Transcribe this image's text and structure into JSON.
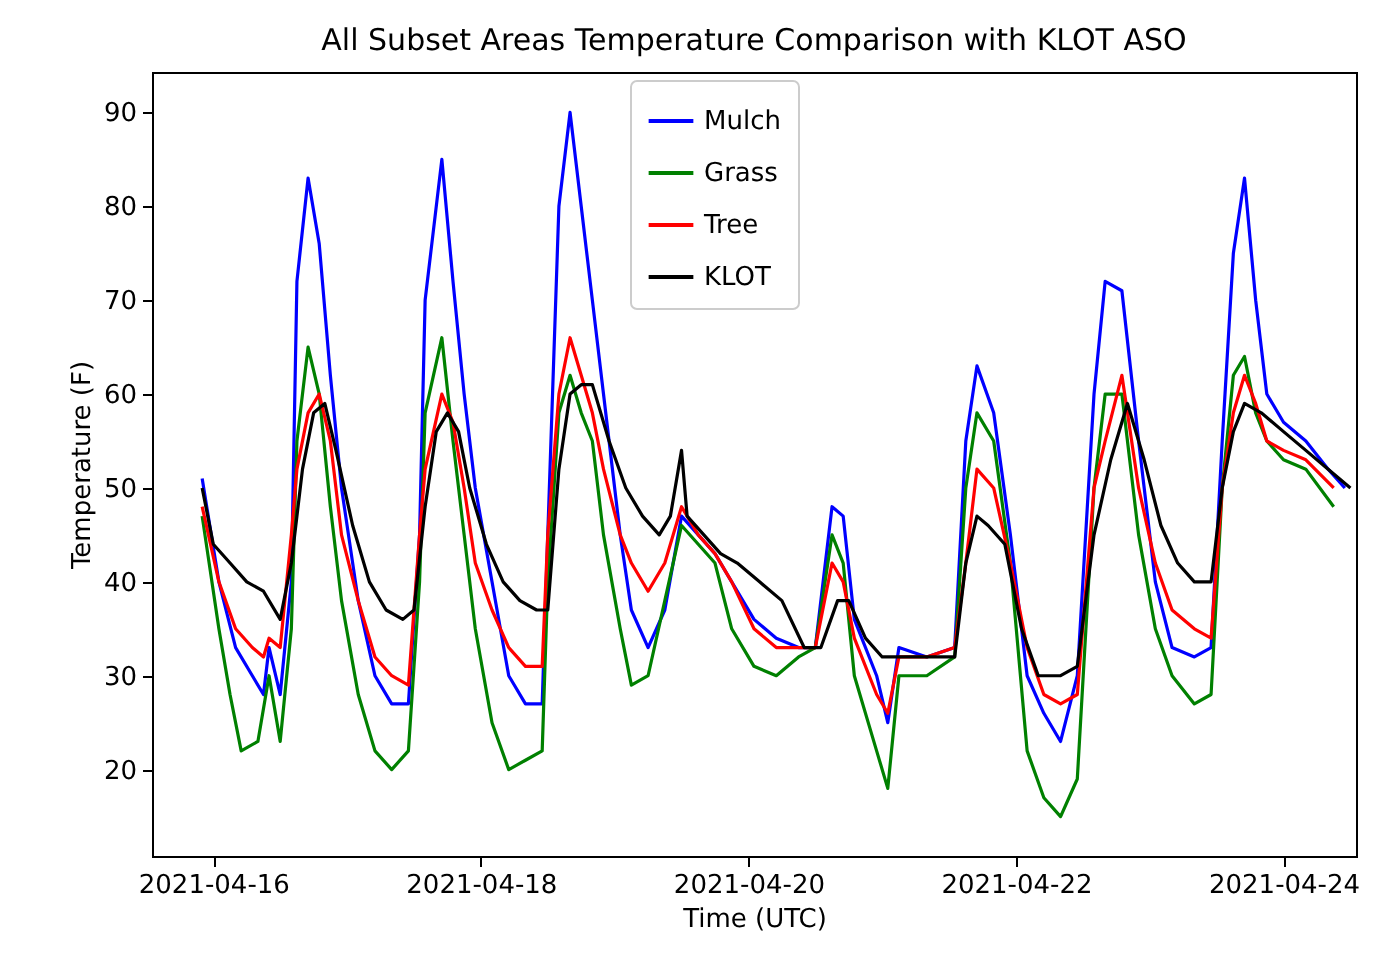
{
  "chart_data": {
    "type": "line",
    "title": "All Subset Areas Temperature Comparison with KLOT ASO",
    "xlabel": "Time (UTC)",
    "ylabel": "Temperature (F)",
    "xlim": [
      "2021-04-15T13:00",
      "2021-04-24T13:00"
    ],
    "xticks": [
      "2021-04-16",
      "2021-04-18",
      "2021-04-20",
      "2021-04-22",
      "2021-04-24"
    ],
    "ylim": [
      10.8,
      94.3
    ],
    "yticks": [
      20,
      30,
      40,
      50,
      60,
      70,
      80,
      90
    ],
    "grid": false,
    "legend": "top",
    "line_style": "solid",
    "series": [
      {
        "name": "Mulch",
        "color": "#0000ff",
        "x": [
          "2021-04-15T22:00",
          "2021-04-16T01:00",
          "2021-04-16T04:00",
          "2021-04-16T07:00",
          "2021-04-16T09:00",
          "2021-04-16T10:00",
          "2021-04-16T12:00",
          "2021-04-16T14:00",
          "2021-04-16T15:00",
          "2021-04-16T17:00",
          "2021-04-16T19:00",
          "2021-04-16T21:00",
          "2021-04-16T23:00",
          "2021-04-17T02:00",
          "2021-04-17T05:00",
          "2021-04-17T08:00",
          "2021-04-17T11:00",
          "2021-04-17T13:00",
          "2021-04-17T14:00",
          "2021-04-17T17:00",
          "2021-04-17T19:00",
          "2021-04-17T21:00",
          "2021-04-17T23:00",
          "2021-04-18T02:00",
          "2021-04-18T05:00",
          "2021-04-18T08:00",
          "2021-04-18T11:00",
          "2021-04-18T12:00",
          "2021-04-18T14:00",
          "2021-04-18T16:00",
          "2021-04-18T18:00",
          "2021-04-18T20:00",
          "2021-04-18T22:00",
          "2021-04-19T01:00",
          "2021-04-19T03:00",
          "2021-04-19T06:00",
          "2021-04-19T09:00",
          "2021-04-19T12:00",
          "2021-04-19T15:00",
          "2021-04-19T18:00",
          "2021-04-19T21:00",
          "2021-04-20T01:00",
          "2021-04-20T05:00",
          "2021-04-20T09:00",
          "2021-04-20T12:00",
          "2021-04-20T15:00",
          "2021-04-20T17:00",
          "2021-04-20T19:00",
          "2021-04-20T23:00",
          "2021-04-21T01:00",
          "2021-04-21T03:00",
          "2021-04-21T08:00",
          "2021-04-21T13:00",
          "2021-04-21T15:00",
          "2021-04-21T17:00",
          "2021-04-21T20:00",
          "2021-04-21T23:00",
          "2021-04-22T02:00",
          "2021-04-22T05:00",
          "2021-04-22T08:00",
          "2021-04-22T11:00",
          "2021-04-22T14:00",
          "2021-04-22T16:00",
          "2021-04-22T19:00",
          "2021-04-22T22:00",
          "2021-04-23T01:00",
          "2021-04-23T04:00",
          "2021-04-23T08:00",
          "2021-04-23T11:00",
          "2021-04-23T13:00",
          "2021-04-23T15:00",
          "2021-04-23T17:00",
          "2021-04-23T19:00",
          "2021-04-23T21:00",
          "2021-04-24T00:00",
          "2021-04-24T04:00",
          "2021-04-24T08:00",
          "2021-04-24T11:00"
        ],
        "values": [
          51,
          40,
          33,
          30,
          28,
          33,
          28,
          40,
          72,
          83,
          76,
          62,
          50,
          38,
          30,
          27,
          27,
          45,
          70,
          85,
          72,
          60,
          50,
          40,
          30,
          27,
          27,
          45,
          80,
          90,
          80,
          70,
          60,
          45,
          37,
          33,
          37,
          47,
          45,
          43,
          40,
          36,
          34,
          33,
          33,
          48,
          47,
          36,
          30,
          25,
          33,
          32,
          33,
          55,
          63,
          58,
          45,
          30,
          26,
          23,
          30,
          60,
          72,
          71,
          55,
          40,
          33,
          32,
          33,
          55,
          75,
          83,
          70,
          60,
          57,
          55,
          52,
          50
        ]
      },
      {
        "name": "Grass",
        "color": "#008000",
        "x": [
          "2021-04-15T22:00",
          "2021-04-16T01:00",
          "2021-04-16T03:00",
          "2021-04-16T05:00",
          "2021-04-16T08:00",
          "2021-04-16T10:00",
          "2021-04-16T12:00",
          "2021-04-16T14:00",
          "2021-04-16T15:00",
          "2021-04-16T17:00",
          "2021-04-16T19:00",
          "2021-04-16T21:00",
          "2021-04-16T23:00",
          "2021-04-17T02:00",
          "2021-04-17T05:00",
          "2021-04-17T08:00",
          "2021-04-17T11:00",
          "2021-04-17T13:00",
          "2021-04-17T14:00",
          "2021-04-17T17:00",
          "2021-04-17T19:00",
          "2021-04-17T21:00",
          "2021-04-17T23:00",
          "2021-04-18T02:00",
          "2021-04-18T05:00",
          "2021-04-18T08:00",
          "2021-04-18T11:00",
          "2021-04-18T12:00",
          "2021-04-18T14:00",
          "2021-04-18T16:00",
          "2021-04-18T18:00",
          "2021-04-18T20:00",
          "2021-04-18T22:00",
          "2021-04-19T01:00",
          "2021-04-19T03:00",
          "2021-04-19T06:00",
          "2021-04-19T09:00",
          "2021-04-19T12:00",
          "2021-04-19T15:00",
          "2021-04-19T18:00",
          "2021-04-19T21:00",
          "2021-04-20T01:00",
          "2021-04-20T05:00",
          "2021-04-20T09:00",
          "2021-04-20T12:00",
          "2021-04-20T15:00",
          "2021-04-20T17:00",
          "2021-04-20T19:00",
          "2021-04-20T23:00",
          "2021-04-21T01:00",
          "2021-04-21T03:00",
          "2021-04-21T08:00",
          "2021-04-21T13:00",
          "2021-04-21T15:00",
          "2021-04-21T17:00",
          "2021-04-21T20:00",
          "2021-04-21T23:00",
          "2021-04-22T02:00",
          "2021-04-22T05:00",
          "2021-04-22T08:00",
          "2021-04-22T11:00",
          "2021-04-22T14:00",
          "2021-04-22T16:00",
          "2021-04-22T19:00",
          "2021-04-22T22:00",
          "2021-04-23T01:00",
          "2021-04-23T04:00",
          "2021-04-23T08:00",
          "2021-04-23T11:00",
          "2021-04-23T13:00",
          "2021-04-23T15:00",
          "2021-04-23T17:00",
          "2021-04-23T19:00",
          "2021-04-23T21:00",
          "2021-04-24T00:00",
          "2021-04-24T04:00",
          "2021-04-24T09:00"
        ],
        "values": [
          47,
          35,
          28,
          22,
          23,
          30,
          23,
          35,
          55,
          65,
          60,
          48,
          38,
          28,
          22,
          20,
          22,
          40,
          58,
          66,
          55,
          45,
          35,
          25,
          20,
          21,
          22,
          40,
          58,
          62,
          58,
          55,
          45,
          35,
          29,
          30,
          38,
          46,
          44,
          42,
          35,
          31,
          30,
          32,
          33,
          45,
          42,
          30,
          22,
          18,
          30,
          30,
          32,
          50,
          58,
          55,
          42,
          22,
          17,
          15,
          19,
          50,
          60,
          60,
          45,
          35,
          30,
          27,
          28,
          50,
          62,
          64,
          58,
          55,
          53,
          52,
          48
        ]
      },
      {
        "name": "Tree",
        "color": "#ff0000",
        "x": [
          "2021-04-15T22:00",
          "2021-04-16T01:00",
          "2021-04-16T04:00",
          "2021-04-16T07:00",
          "2021-04-16T09:00",
          "2021-04-16T10:00",
          "2021-04-16T12:00",
          "2021-04-16T14:00",
          "2021-04-16T15:00",
          "2021-04-16T17:00",
          "2021-04-16T19:00",
          "2021-04-16T21:00",
          "2021-04-16T23:00",
          "2021-04-17T02:00",
          "2021-04-17T05:00",
          "2021-04-17T08:00",
          "2021-04-17T11:00",
          "2021-04-17T13:00",
          "2021-04-17T14:00",
          "2021-04-17T17:00",
          "2021-04-17T19:00",
          "2021-04-17T21:00",
          "2021-04-17T23:00",
          "2021-04-18T02:00",
          "2021-04-18T05:00",
          "2021-04-18T08:00",
          "2021-04-18T11:00",
          "2021-04-18T12:00",
          "2021-04-18T14:00",
          "2021-04-18T16:00",
          "2021-04-18T18:00",
          "2021-04-18T20:00",
          "2021-04-18T22:00",
          "2021-04-19T01:00",
          "2021-04-19T03:00",
          "2021-04-19T06:00",
          "2021-04-19T09:00",
          "2021-04-19T12:00",
          "2021-04-19T15:00",
          "2021-04-19T18:00",
          "2021-04-19T21:00",
          "2021-04-20T01:00",
          "2021-04-20T05:00",
          "2021-04-20T09:00",
          "2021-04-20T12:00",
          "2021-04-20T15:00",
          "2021-04-20T17:00",
          "2021-04-20T19:00",
          "2021-04-20T23:00",
          "2021-04-21T01:00",
          "2021-04-21T03:00",
          "2021-04-21T08:00",
          "2021-04-21T13:00",
          "2021-04-21T15:00",
          "2021-04-21T17:00",
          "2021-04-21T20:00",
          "2021-04-21T23:00",
          "2021-04-22T02:00",
          "2021-04-22T05:00",
          "2021-04-22T08:00",
          "2021-04-22T11:00",
          "2021-04-22T14:00",
          "2021-04-22T16:00",
          "2021-04-22T19:00",
          "2021-04-22T22:00",
          "2021-04-23T01:00",
          "2021-04-23T04:00",
          "2021-04-23T08:00",
          "2021-04-23T11:00",
          "2021-04-23T13:00",
          "2021-04-23T15:00",
          "2021-04-23T17:00",
          "2021-04-23T19:00",
          "2021-04-23T21:00",
          "2021-04-24T00:00",
          "2021-04-24T04:00",
          "2021-04-24T09:00"
        ],
        "values": [
          48,
          40,
          35,
          33,
          32,
          34,
          33,
          45,
          52,
          58,
          60,
          55,
          45,
          38,
          32,
          30,
          29,
          45,
          52,
          60,
          57,
          50,
          42,
          37,
          33,
          31,
          31,
          45,
          60,
          66,
          62,
          58,
          52,
          45,
          42,
          39,
          42,
          48,
          45,
          43,
          40,
          35,
          33,
          33,
          33,
          42,
          40,
          34,
          28,
          26,
          32,
          32,
          33,
          42,
          52,
          50,
          42,
          33,
          28,
          27,
          28,
          50,
          55,
          62,
          50,
          42,
          37,
          35,
          34,
          50,
          58,
          62,
          59,
          55,
          54,
          53,
          50
        ]
      },
      {
        "name": "KLOT",
        "color": "#000000",
        "x": [
          "2021-04-15T22:00",
          "2021-04-16T00:00",
          "2021-04-16T03:00",
          "2021-04-16T06:00",
          "2021-04-16T09:00",
          "2021-04-16T12:00",
          "2021-04-16T14:00",
          "2021-04-16T16:00",
          "2021-04-16T18:00",
          "2021-04-16T20:00",
          "2021-04-16T22:00",
          "2021-04-17T01:00",
          "2021-04-17T04:00",
          "2021-04-17T07:00",
          "2021-04-17T10:00",
          "2021-04-17T12:00",
          "2021-04-17T14:00",
          "2021-04-17T16:00",
          "2021-04-17T18:00",
          "2021-04-17T20:00",
          "2021-04-17T22:00",
          "2021-04-18T01:00",
          "2021-04-18T04:00",
          "2021-04-18T07:00",
          "2021-04-18T10:00",
          "2021-04-18T12:00",
          "2021-04-18T14:00",
          "2021-04-18T16:00",
          "2021-04-18T18:00",
          "2021-04-18T20:00",
          "2021-04-18T23:00",
          "2021-04-19T02:00",
          "2021-04-19T05:00",
          "2021-04-19T08:00",
          "2021-04-19T10:00",
          "2021-04-19T12:00",
          "2021-04-19T13:00",
          "2021-04-19T16:00",
          "2021-04-19T19:00",
          "2021-04-19T22:00",
          "2021-04-20T02:00",
          "2021-04-20T06:00",
          "2021-04-20T10:00",
          "2021-04-20T13:00",
          "2021-04-20T16:00",
          "2021-04-20T18:00",
          "2021-04-20T21:00",
          "2021-04-21T00:00",
          "2021-04-21T04:00",
          "2021-04-21T09:00",
          "2021-04-21T13:00",
          "2021-04-21T15:00",
          "2021-04-21T17:00",
          "2021-04-21T19:00",
          "2021-04-21T22:00",
          "2021-04-22T01:00",
          "2021-04-22T04:00",
          "2021-04-22T08:00",
          "2021-04-22T11:00",
          "2021-04-22T14:00",
          "2021-04-22T17:00",
          "2021-04-22T20:00",
          "2021-04-22T23:00",
          "2021-04-23T02:00",
          "2021-04-23T05:00",
          "2021-04-23T08:00",
          "2021-04-23T11:00",
          "2021-04-23T13:00",
          "2021-04-23T15:00",
          "2021-04-23T17:00",
          "2021-04-23T20:00",
          "2021-04-24T00:00",
          "2021-04-24T04:00",
          "2021-04-24T08:00",
          "2021-04-24T12:00"
        ],
        "values": [
          50,
          44,
          42,
          40,
          39,
          36,
          42,
          52,
          58,
          59,
          54,
          46,
          40,
          37,
          36,
          37,
          48,
          56,
          58,
          56,
          50,
          44,
          40,
          38,
          37,
          37,
          52,
          60,
          61,
          61,
          55,
          50,
          47,
          45,
          47,
          54,
          47,
          45,
          43,
          42,
          40,
          38,
          33,
          33,
          38,
          38,
          34,
          32,
          32,
          32,
          32,
          42,
          47,
          46,
          44,
          35,
          30,
          30,
          31,
          45,
          53,
          59,
          53,
          46,
          42,
          40,
          40,
          50,
          56,
          59,
          58,
          56,
          54,
          52,
          50
        ]
      }
    ]
  }
}
